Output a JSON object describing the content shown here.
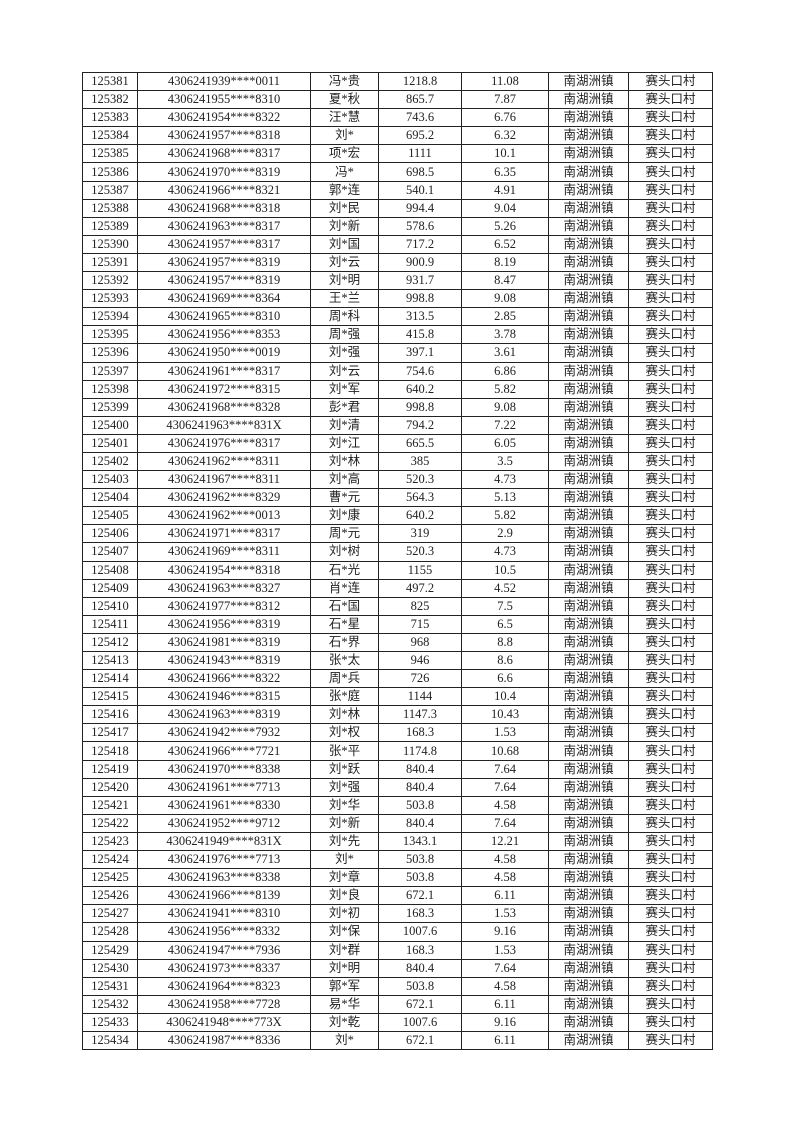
{
  "table": {
    "rows": [
      [
        "125381",
        "4306241939****0011",
        "冯*贵",
        "1218.8",
        "11.08",
        "南湖洲镇",
        "赛头口村"
      ],
      [
        "125382",
        "4306241955****8310",
        "夏*秋",
        "865.7",
        "7.87",
        "南湖洲镇",
        "赛头口村"
      ],
      [
        "125383",
        "4306241954****8322",
        "汪*慧",
        "743.6",
        "6.76",
        "南湖洲镇",
        "赛头口村"
      ],
      [
        "125384",
        "4306241957****8318",
        "刘*",
        "695.2",
        "6.32",
        "南湖洲镇",
        "赛头口村"
      ],
      [
        "125385",
        "4306241968****8317",
        "项*宏",
        "1111",
        "10.1",
        "南湖洲镇",
        "赛头口村"
      ],
      [
        "125386",
        "4306241970****8319",
        "冯*",
        "698.5",
        "6.35",
        "南湖洲镇",
        "赛头口村"
      ],
      [
        "125387",
        "4306241966****8321",
        "郭*连",
        "540.1",
        "4.91",
        "南湖洲镇",
        "赛头口村"
      ],
      [
        "125388",
        "4306241968****8318",
        "刘*民",
        "994.4",
        "9.04",
        "南湖洲镇",
        "赛头口村"
      ],
      [
        "125389",
        "4306241963****8317",
        "刘*新",
        "578.6",
        "5.26",
        "南湖洲镇",
        "赛头口村"
      ],
      [
        "125390",
        "4306241957****8317",
        "刘*国",
        "717.2",
        "6.52",
        "南湖洲镇",
        "赛头口村"
      ],
      [
        "125391",
        "4306241957****8319",
        "刘*云",
        "900.9",
        "8.19",
        "南湖洲镇",
        "赛头口村"
      ],
      [
        "125392",
        "4306241957****8319",
        "刘*明",
        "931.7",
        "8.47",
        "南湖洲镇",
        "赛头口村"
      ],
      [
        "125393",
        "4306241969****8364",
        "王*兰",
        "998.8",
        "9.08",
        "南湖洲镇",
        "赛头口村"
      ],
      [
        "125394",
        "4306241965****8310",
        "周*科",
        "313.5",
        "2.85",
        "南湖洲镇",
        "赛头口村"
      ],
      [
        "125395",
        "4306241956****8353",
        "周*强",
        "415.8",
        "3.78",
        "南湖洲镇",
        "赛头口村"
      ],
      [
        "125396",
        "4306241950****0019",
        "刘*强",
        "397.1",
        "3.61",
        "南湖洲镇",
        "赛头口村"
      ],
      [
        "125397",
        "4306241961****8317",
        "刘*云",
        "754.6",
        "6.86",
        "南湖洲镇",
        "赛头口村"
      ],
      [
        "125398",
        "4306241972****8315",
        "刘*军",
        "640.2",
        "5.82",
        "南湖洲镇",
        "赛头口村"
      ],
      [
        "125399",
        "4306241968****8328",
        "彭*君",
        "998.8",
        "9.08",
        "南湖洲镇",
        "赛头口村"
      ],
      [
        "125400",
        "4306241963****831X",
        "刘*清",
        "794.2",
        "7.22",
        "南湖洲镇",
        "赛头口村"
      ],
      [
        "125401",
        "4306241976****8317",
        "刘*江",
        "665.5",
        "6.05",
        "南湖洲镇",
        "赛头口村"
      ],
      [
        "125402",
        "4306241962****8311",
        "刘*林",
        "385",
        "3.5",
        "南湖洲镇",
        "赛头口村"
      ],
      [
        "125403",
        "4306241967****8311",
        "刘*高",
        "520.3",
        "4.73",
        "南湖洲镇",
        "赛头口村"
      ],
      [
        "125404",
        "4306241962****8329",
        "曹*元",
        "564.3",
        "5.13",
        "南湖洲镇",
        "赛头口村"
      ],
      [
        "125405",
        "4306241962****0013",
        "刘*康",
        "640.2",
        "5.82",
        "南湖洲镇",
        "赛头口村"
      ],
      [
        "125406",
        "4306241971****8317",
        "周*元",
        "319",
        "2.9",
        "南湖洲镇",
        "赛头口村"
      ],
      [
        "125407",
        "4306241969****8311",
        "刘*树",
        "520.3",
        "4.73",
        "南湖洲镇",
        "赛头口村"
      ],
      [
        "125408",
        "4306241954****8318",
        "石*光",
        "1155",
        "10.5",
        "南湖洲镇",
        "赛头口村"
      ],
      [
        "125409",
        "4306241963****8327",
        "肖*连",
        "497.2",
        "4.52",
        "南湖洲镇",
        "赛头口村"
      ],
      [
        "125410",
        "4306241977****8312",
        "石*国",
        "825",
        "7.5",
        "南湖洲镇",
        "赛头口村"
      ],
      [
        "125411",
        "4306241956****8319",
        "石*星",
        "715",
        "6.5",
        "南湖洲镇",
        "赛头口村"
      ],
      [
        "125412",
        "4306241981****8319",
        "石*界",
        "968",
        "8.8",
        "南湖洲镇",
        "赛头口村"
      ],
      [
        "125413",
        "4306241943****8319",
        "张*太",
        "946",
        "8.6",
        "南湖洲镇",
        "赛头口村"
      ],
      [
        "125414",
        "4306241966****8322",
        "周*兵",
        "726",
        "6.6",
        "南湖洲镇",
        "赛头口村"
      ],
      [
        "125415",
        "4306241946****8315",
        "张*庭",
        "1144",
        "10.4",
        "南湖洲镇",
        "赛头口村"
      ],
      [
        "125416",
        "4306241963****8319",
        "刘*林",
        "1147.3",
        "10.43",
        "南湖洲镇",
        "赛头口村"
      ],
      [
        "125417",
        "4306241942****7932",
        "刘*权",
        "168.3",
        "1.53",
        "南湖洲镇",
        "赛头口村"
      ],
      [
        "125418",
        "4306241966****7721",
        "张*平",
        "1174.8",
        "10.68",
        "南湖洲镇",
        "赛头口村"
      ],
      [
        "125419",
        "4306241970****8338",
        "刘*跃",
        "840.4",
        "7.64",
        "南湖洲镇",
        "赛头口村"
      ],
      [
        "125420",
        "4306241961****7713",
        "刘*强",
        "840.4",
        "7.64",
        "南湖洲镇",
        "赛头口村"
      ],
      [
        "125421",
        "4306241961****8330",
        "刘*华",
        "503.8",
        "4.58",
        "南湖洲镇",
        "赛头口村"
      ],
      [
        "125422",
        "4306241952****9712",
        "刘*新",
        "840.4",
        "7.64",
        "南湖洲镇",
        "赛头口村"
      ],
      [
        "125423",
        "4306241949****831X",
        "刘*先",
        "1343.1",
        "12.21",
        "南湖洲镇",
        "赛头口村"
      ],
      [
        "125424",
        "4306241976****7713",
        "刘*",
        "503.8",
        "4.58",
        "南湖洲镇",
        "赛头口村"
      ],
      [
        "125425",
        "4306241963****8338",
        "刘*章",
        "503.8",
        "4.58",
        "南湖洲镇",
        "赛头口村"
      ],
      [
        "125426",
        "4306241966****8139",
        "刘*良",
        "672.1",
        "6.11",
        "南湖洲镇",
        "赛头口村"
      ],
      [
        "125427",
        "4306241941****8310",
        "刘*初",
        "168.3",
        "1.53",
        "南湖洲镇",
        "赛头口村"
      ],
      [
        "125428",
        "4306241956****8332",
        "刘*保",
        "1007.6",
        "9.16",
        "南湖洲镇",
        "赛头口村"
      ],
      [
        "125429",
        "4306241947****7936",
        "刘*群",
        "168.3",
        "1.53",
        "南湖洲镇",
        "赛头口村"
      ],
      [
        "125430",
        "4306241973****8337",
        "刘*明",
        "840.4",
        "7.64",
        "南湖洲镇",
        "赛头口村"
      ],
      [
        "125431",
        "4306241964****8323",
        "郭*军",
        "503.8",
        "4.58",
        "南湖洲镇",
        "赛头口村"
      ],
      [
        "125432",
        "4306241958****7728",
        "易*华",
        "672.1",
        "6.11",
        "南湖洲镇",
        "赛头口村"
      ],
      [
        "125433",
        "4306241948****773X",
        "刘*乾",
        "1007.6",
        "9.16",
        "南湖洲镇",
        "赛头口村"
      ],
      [
        "125434",
        "4306241987****8336",
        "刘*",
        "672.1",
        "6.11",
        "南湖洲镇",
        "赛头口村"
      ]
    ]
  }
}
